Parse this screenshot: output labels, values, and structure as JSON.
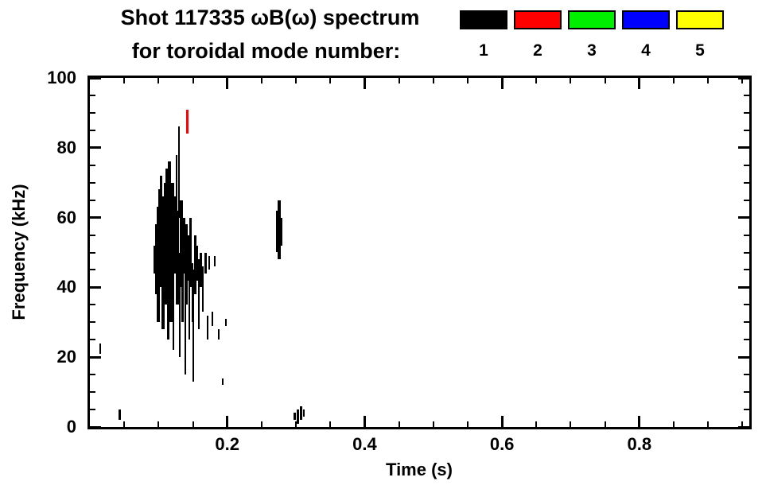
{
  "header": {
    "line1": "Shot 117335 ωB(ω) spectrum",
    "line2": "for toroidal mode number:"
  },
  "legend": {
    "modes": [
      {
        "label": "1",
        "color": "#000000"
      },
      {
        "label": "2",
        "color": "#ff0000"
      },
      {
        "label": "3",
        "color": "#00ee00"
      },
      {
        "label": "4",
        "color": "#0000ff"
      },
      {
        "label": "5",
        "color": "#ffff00"
      }
    ]
  },
  "chart_data": {
    "type": "scatter",
    "title": "Shot 117335 ωB(ω) spectrum for toroidal mode number",
    "xlabel": "Time (s)",
    "ylabel": "Frequency (kHz)",
    "xlim": [
      0,
      0.96
    ],
    "ylim": [
      0,
      100
    ],
    "x_major_ticks": [
      0.2,
      0.4,
      0.6,
      0.8
    ],
    "x_major_tick_labels": [
      "0.2",
      "0.4",
      "0.6",
      "0.8"
    ],
    "x_minor_step": 0.05,
    "y_major_ticks": [
      0,
      20,
      40,
      60,
      80,
      100
    ],
    "y_major_tick_labels": [
      "0",
      "20",
      "40",
      "60",
      "80",
      "100"
    ],
    "y_minor_step": 5,
    "grid": false,
    "legend_position": "top-right",
    "axis_color": "#000000",
    "background": "#ffffff",
    "series": [
      {
        "name": "mode 1",
        "color": "#000000",
        "segments": [
          [
            0.015,
            21,
            24,
            2
          ],
          [
            0.043,
            2,
            5,
            3
          ],
          [
            0.094,
            44,
            52,
            3
          ],
          [
            0.097,
            38,
            58,
            3
          ],
          [
            0.0995,
            30,
            63,
            4
          ],
          [
            0.102,
            45,
            68,
            4
          ],
          [
            0.104,
            40,
            72,
            3
          ],
          [
            0.106,
            28,
            60,
            4
          ],
          [
            0.108,
            46,
            66,
            4
          ],
          [
            0.11,
            35,
            70,
            4
          ],
          [
            0.112,
            42,
            74,
            4
          ],
          [
            0.114,
            25,
            62,
            3
          ],
          [
            0.116,
            45,
            76,
            4
          ],
          [
            0.118,
            30,
            58,
            4
          ],
          [
            0.12,
            47,
            70,
            4
          ],
          [
            0.122,
            22,
            55,
            2
          ],
          [
            0.124,
            44,
            66,
            4
          ],
          [
            0.126,
            57,
            78,
            2
          ],
          [
            0.1275,
            35,
            62,
            4
          ],
          [
            0.13,
            60,
            86,
            2
          ],
          [
            0.131,
            20,
            50,
            2
          ],
          [
            0.133,
            40,
            65,
            4
          ],
          [
            0.135,
            30,
            57,
            3
          ],
          [
            0.137,
            44,
            60,
            4
          ],
          [
            0.139,
            15,
            48,
            2
          ],
          [
            0.141,
            35,
            58,
            3
          ],
          [
            0.143,
            42,
            55,
            3
          ],
          [
            0.145,
            25,
            52,
            2
          ],
          [
            0.147,
            40,
            60,
            3
          ],
          [
            0.149,
            30,
            47,
            2
          ],
          [
            0.151,
            13,
            45,
            2
          ],
          [
            0.153,
            38,
            55,
            3
          ],
          [
            0.156,
            42,
            52,
            3
          ],
          [
            0.159,
            28,
            48,
            2
          ],
          [
            0.162,
            40,
            50,
            3
          ],
          [
            0.165,
            33,
            46,
            2
          ],
          [
            0.168,
            44,
            50,
            3
          ],
          [
            0.171,
            25,
            32,
            2
          ],
          [
            0.174,
            45,
            49,
            2
          ],
          [
            0.178,
            29,
            33,
            2
          ],
          [
            0.182,
            46,
            49,
            2
          ],
          [
            0.188,
            25,
            28,
            2
          ],
          [
            0.193,
            12,
            14,
            2
          ],
          [
            0.198,
            29,
            31,
            2
          ],
          [
            0.273,
            50,
            62,
            3
          ],
          [
            0.276,
            48,
            65,
            4
          ],
          [
            0.279,
            52,
            60,
            3
          ],
          [
            0.298,
            2,
            4,
            3
          ],
          [
            0.303,
            1,
            5,
            3
          ],
          [
            0.307,
            2,
            6,
            3
          ],
          [
            0.311,
            3,
            5,
            2
          ]
        ]
      },
      {
        "name": "mode 2",
        "color": "#ff0000",
        "segments": [
          [
            0.142,
            84,
            91,
            3
          ]
        ]
      },
      {
        "name": "mode 3",
        "color": "#00ee00",
        "segments": []
      },
      {
        "name": "mode 4",
        "color": "#0000ff",
        "segments": []
      },
      {
        "name": "mode 5",
        "color": "#ffff00",
        "segments": []
      }
    ]
  }
}
